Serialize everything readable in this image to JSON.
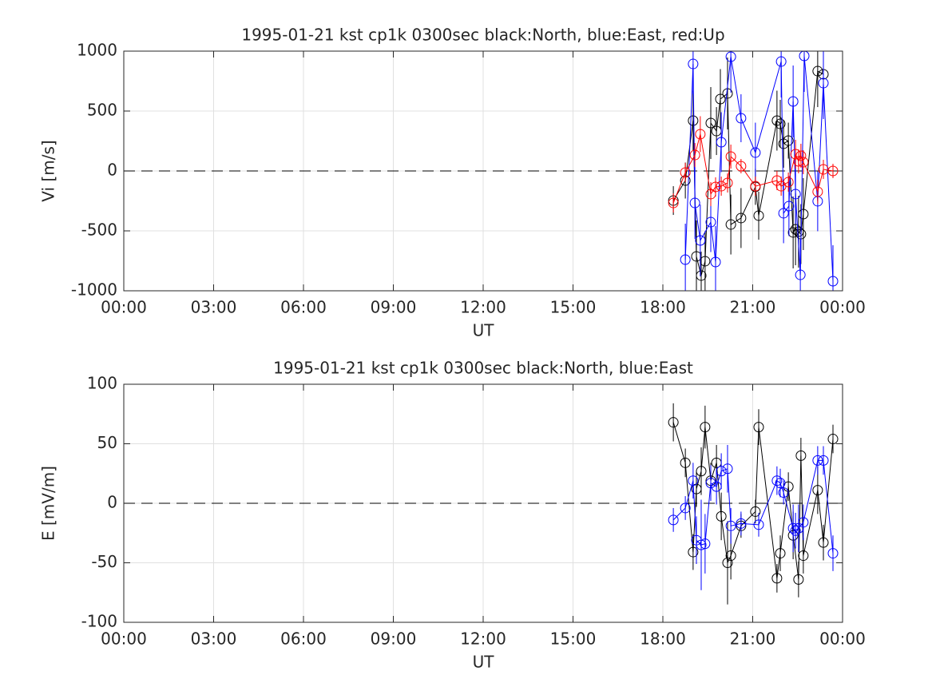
{
  "chart_data": [
    {
      "type": "line",
      "title": "1995-01-21 kst cp1k 0300sec black:North, blue:East, red:Up",
      "xlabel": "UT",
      "ylabel": "Vi [m/s]",
      "xlim": [
        0,
        24
      ],
      "xticks": [
        {
          "value": 0,
          "label": "00:00"
        },
        {
          "value": 3,
          "label": "03:00"
        },
        {
          "value": 6,
          "label": "06:00"
        },
        {
          "value": 9,
          "label": "09:00"
        },
        {
          "value": 12,
          "label": "12:00"
        },
        {
          "value": 15,
          "label": "15:00"
        },
        {
          "value": 18,
          "label": "18:00"
        },
        {
          "value": 21,
          "label": "21:00"
        },
        {
          "value": 24,
          "label": "00:00"
        }
      ],
      "ylim": [
        -1000,
        1000
      ],
      "yticks": [
        -1000,
        -500,
        0,
        500,
        1000
      ],
      "grid": true,
      "reference_line": 0,
      "series": [
        {
          "color": "#000000",
          "x": [
            18.35,
            18.75,
            19.01,
            19.12,
            19.28,
            19.41,
            19.6,
            19.79,
            19.92,
            20.16,
            20.27,
            20.61,
            21.09,
            21.2,
            21.81,
            21.92,
            22.03,
            22.19,
            22.35,
            22.43,
            22.53,
            22.61,
            22.69,
            23.17,
            23.36
          ],
          "values": [
            -247,
            -80,
            420,
            -713,
            -873,
            -753,
            400,
            333,
            600,
            647,
            -447,
            -393,
            -133,
            -373,
            420,
            393,
            227,
            253,
            -513,
            -487,
            -507,
            -527,
            -360,
            833,
            807
          ],
          "errors": [
            120,
            150,
            250,
            300,
            200,
            250,
            300,
            200,
            250,
            300,
            250,
            250,
            150,
            200,
            250,
            200,
            200,
            150,
            300,
            300,
            300,
            250,
            300,
            300,
            250
          ]
        },
        {
          "color": "#0000ff",
          "x": [
            18.75,
            19.01,
            19.07,
            19.25,
            19.6,
            19.76,
            19.95,
            20.27,
            20.61,
            21.09,
            21.95,
            22.03,
            22.21,
            22.35,
            22.43,
            22.59,
            22.72,
            23.17,
            23.36,
            23.68
          ],
          "values": [
            -740,
            893,
            -267,
            -580,
            -427,
            -760,
            240,
            953,
            440,
            153,
            913,
            -353,
            -293,
            580,
            -193,
            -867,
            960,
            -253,
            733,
            -920
          ],
          "errors": [
            300,
            250,
            300,
            300,
            250,
            300,
            250,
            300,
            200,
            250,
            300,
            250,
            250,
            300,
            250,
            300,
            300,
            250,
            300,
            300
          ]
        },
        {
          "color": "#ff0000",
          "x": [
            18.35,
            18.75,
            19.07,
            19.25,
            19.6,
            19.76,
            19.95,
            20.16,
            20.27,
            20.61,
            21.09,
            21.81,
            21.95,
            22.19,
            22.43,
            22.53,
            22.61,
            22.69,
            23.17,
            23.36,
            23.68
          ],
          "values": [
            -267,
            -13,
            133,
            307,
            -193,
            -133,
            -127,
            -100,
            120,
            40,
            -127,
            -80,
            -127,
            -93,
            140,
            80,
            127,
            73,
            -173,
            13,
            0
          ],
          "errors": [
            80,
            80,
            100,
            150,
            100,
            80,
            80,
            80,
            100,
            60,
            80,
            80,
            80,
            80,
            120,
            100,
            100,
            100,
            100,
            80,
            60
          ]
        }
      ]
    },
    {
      "type": "line",
      "title": "1995-01-21 kst cp1k 0300sec black:North, blue:East",
      "xlabel": "UT",
      "ylabel": "E [mV/m]",
      "xlim": [
        0,
        24
      ],
      "xticks": [
        {
          "value": 0,
          "label": "00:00"
        },
        {
          "value": 3,
          "label": "03:00"
        },
        {
          "value": 6,
          "label": "06:00"
        },
        {
          "value": 9,
          "label": "09:00"
        },
        {
          "value": 12,
          "label": "12:00"
        },
        {
          "value": 15,
          "label": "15:00"
        },
        {
          "value": 18,
          "label": "18:00"
        },
        {
          "value": 21,
          "label": "21:00"
        },
        {
          "value": 24,
          "label": "00:00"
        }
      ],
      "ylim": [
        -100,
        100
      ],
      "yticks": [
        -100,
        -50,
        0,
        50,
        100
      ],
      "grid": true,
      "reference_line": 0,
      "series": [
        {
          "color": "#000000",
          "x": [
            18.35,
            18.75,
            19.01,
            19.12,
            19.28,
            19.41,
            19.6,
            19.79,
            19.95,
            20.16,
            20.27,
            20.61,
            21.09,
            21.2,
            21.81,
            21.92,
            22.19,
            22.35,
            22.53,
            22.61,
            22.69,
            23.17,
            23.36,
            23.68
          ],
          "values": [
            68,
            34,
            -41,
            12,
            27,
            64,
            19,
            34,
            -11,
            -50,
            -44,
            -19,
            -7,
            64,
            -63,
            -42,
            14,
            -27,
            -64,
            40,
            -44,
            11,
            -33,
            54
          ],
          "errors": [
            16,
            12,
            15,
            15,
            20,
            18,
            15,
            15,
            20,
            35,
            20,
            10,
            10,
            15,
            12,
            15,
            12,
            20,
            15,
            15,
            15,
            20,
            15,
            12
          ]
        },
        {
          "color": "#0000ff",
          "x": [
            18.35,
            18.75,
            19.01,
            19.12,
            19.28,
            19.41,
            19.6,
            19.79,
            19.95,
            20.16,
            20.27,
            20.61,
            21.2,
            21.81,
            21.92,
            22.03,
            22.35,
            22.43,
            22.53,
            22.69,
            23.17,
            23.36,
            23.68
          ],
          "values": [
            -14,
            -4,
            19,
            -31,
            -35,
            -34,
            17,
            14,
            27,
            29,
            -19,
            -17,
            -18,
            19,
            17,
            9,
            -21,
            -23,
            -21,
            -16,
            36,
            36,
            -42
          ],
          "errors": [
            10,
            10,
            15,
            20,
            38,
            25,
            15,
            15,
            15,
            20,
            15,
            10,
            10,
            12,
            12,
            10,
            20,
            15,
            20,
            15,
            12,
            12,
            15
          ]
        }
      ]
    }
  ]
}
